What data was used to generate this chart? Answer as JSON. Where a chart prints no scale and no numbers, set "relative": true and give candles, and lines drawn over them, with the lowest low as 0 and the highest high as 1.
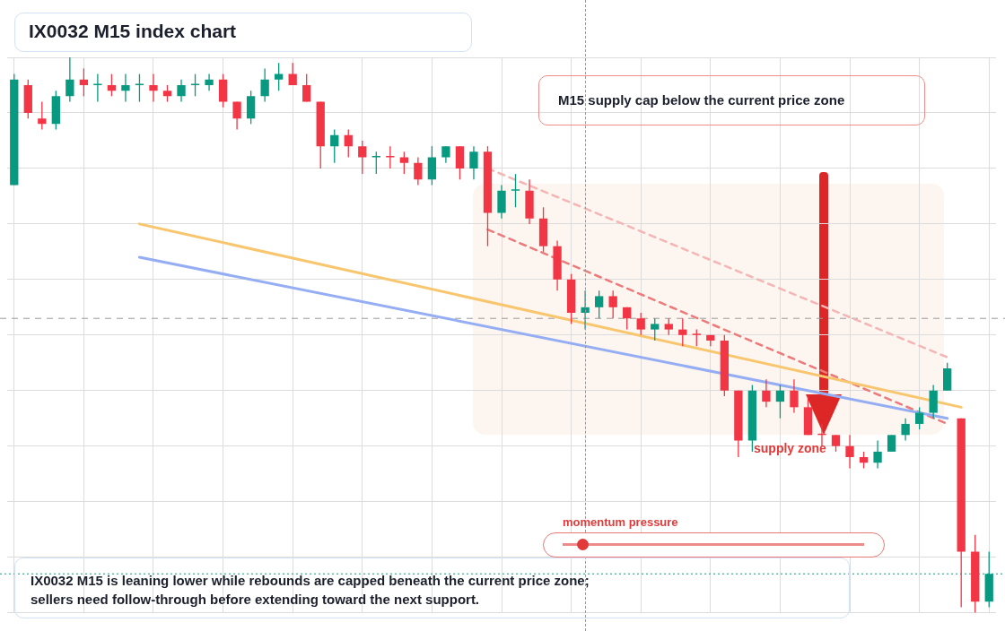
{
  "chart_data": {
    "type": "candlestick",
    "title": "IX0032 M15 index chart",
    "relative": true,
    "grid": true,
    "legend": false,
    "categories": [
      null,
      null,
      null,
      null,
      null,
      null,
      null,
      null,
      null,
      null,
      null,
      null,
      null,
      null,
      null,
      null,
      null,
      null,
      null,
      null,
      null,
      null,
      null,
      null,
      null,
      null,
      null,
      null,
      null,
      null,
      null,
      null,
      null,
      null,
      null,
      null,
      null,
      null,
      null,
      null,
      null,
      null,
      null,
      null,
      null,
      null,
      null,
      null,
      null,
      null,
      null,
      null,
      null,
      null,
      null,
      null,
      null,
      null,
      null,
      null,
      null,
      null,
      null,
      null,
      null,
      null,
      null,
      null,
      null,
      null,
      null
    ],
    "ohlc": [
      [
        0.77,
        0.97,
        0.77,
        0.96
      ],
      [
        0.95,
        0.96,
        0.89,
        0.9
      ],
      [
        0.89,
        0.92,
        0.87,
        0.88
      ],
      [
        0.88,
        0.94,
        0.87,
        0.93
      ],
      [
        0.93,
        1.0,
        0.92,
        0.96
      ],
      [
        0.96,
        0.98,
        0.93,
        0.95
      ],
      [
        0.95,
        0.97,
        0.92,
        0.95
      ],
      [
        0.95,
        0.97,
        0.93,
        0.94
      ],
      [
        0.94,
        0.97,
        0.92,
        0.95
      ],
      [
        0.95,
        0.97,
        0.92,
        0.95
      ],
      [
        0.95,
        0.97,
        0.92,
        0.94
      ],
      [
        0.94,
        0.95,
        0.92,
        0.93
      ],
      [
        0.93,
        0.96,
        0.92,
        0.95
      ],
      [
        0.95,
        0.97,
        0.93,
        0.95
      ],
      [
        0.95,
        0.97,
        0.94,
        0.96
      ],
      [
        0.96,
        0.97,
        0.91,
        0.92
      ],
      [
        0.92,
        0.92,
        0.87,
        0.89
      ],
      [
        0.89,
        0.94,
        0.88,
        0.93
      ],
      [
        0.93,
        0.98,
        0.92,
        0.96
      ],
      [
        0.96,
        0.99,
        0.94,
        0.97
      ],
      [
        0.97,
        0.99,
        0.95,
        0.95
      ],
      [
        0.95,
        0.97,
        0.92,
        0.92
      ],
      [
        0.92,
        0.92,
        0.8,
        0.84
      ],
      [
        0.84,
        0.87,
        0.81,
        0.86
      ],
      [
        0.86,
        0.87,
        0.82,
        0.84
      ],
      [
        0.84,
        0.85,
        0.79,
        0.82
      ],
      [
        0.82,
        0.83,
        0.79,
        0.82
      ],
      [
        0.82,
        0.84,
        0.8,
        0.82
      ],
      [
        0.82,
        0.83,
        0.79,
        0.81
      ],
      [
        0.81,
        0.82,
        0.77,
        0.78
      ],
      [
        0.78,
        0.84,
        0.77,
        0.82
      ],
      [
        0.82,
        0.84,
        0.81,
        0.84
      ],
      [
        0.84,
        0.84,
        0.78,
        0.8
      ],
      [
        0.8,
        0.84,
        0.78,
        0.83
      ],
      [
        0.83,
        0.84,
        0.66,
        0.72
      ],
      [
        0.72,
        0.77,
        0.71,
        0.76
      ],
      [
        0.76,
        0.79,
        0.73,
        0.76
      ],
      [
        0.76,
        0.78,
        0.7,
        0.71
      ],
      [
        0.71,
        0.73,
        0.65,
        0.66
      ],
      [
        0.66,
        0.67,
        0.58,
        0.6
      ],
      [
        0.6,
        0.61,
        0.52,
        0.54
      ],
      [
        0.54,
        0.58,
        0.51,
        0.55
      ],
      [
        0.55,
        0.58,
        0.53,
        0.57
      ],
      [
        0.57,
        0.58,
        0.53,
        0.55
      ],
      [
        0.55,
        0.55,
        0.51,
        0.53
      ],
      [
        0.53,
        0.54,
        0.5,
        0.51
      ],
      [
        0.51,
        0.53,
        0.49,
        0.52
      ],
      [
        0.52,
        0.53,
        0.5,
        0.51
      ],
      [
        0.51,
        0.53,
        0.48,
        0.5
      ],
      [
        0.5,
        0.51,
        0.48,
        0.5
      ],
      [
        0.5,
        0.5,
        0.48,
        0.49
      ],
      [
        0.49,
        0.5,
        0.39,
        0.4
      ],
      [
        0.4,
        0.4,
        0.28,
        0.31
      ],
      [
        0.31,
        0.41,
        0.29,
        0.4
      ],
      [
        0.4,
        0.42,
        0.37,
        0.38
      ],
      [
        0.38,
        0.41,
        0.35,
        0.4
      ],
      [
        0.4,
        0.42,
        0.36,
        0.37
      ],
      [
        0.37,
        0.39,
        0.32,
        0.32
      ],
      [
        0.32,
        0.34,
        0.3,
        0.32
      ],
      [
        0.32,
        0.32,
        0.29,
        0.3
      ],
      [
        0.3,
        0.32,
        0.26,
        0.28
      ],
      [
        0.28,
        0.29,
        0.26,
        0.27
      ],
      [
        0.27,
        0.31,
        0.26,
        0.29
      ],
      [
        0.29,
        0.32,
        0.29,
        0.32
      ],
      [
        0.32,
        0.35,
        0.31,
        0.34
      ],
      [
        0.34,
        0.37,
        0.33,
        0.36
      ],
      [
        0.36,
        0.41,
        0.35,
        0.4
      ],
      [
        0.4,
        0.45,
        0.4,
        0.44
      ],
      [
        0.35,
        0.35,
        0.01,
        0.11
      ],
      [
        0.11,
        0.14,
        0.0,
        0.02
      ],
      [
        0.02,
        0.11,
        0.01,
        0.07
      ]
    ],
    "colors": [
      "#089981",
      "#f23645",
      "#f23645",
      "#089981",
      "#089981",
      "#f23645",
      "#089981",
      "#f23645",
      "#089981",
      "#089981",
      "#f23645",
      "#f23645",
      "#089981",
      "#089981",
      "#089981",
      "#f23645",
      "#f23645",
      "#089981",
      "#089981",
      "#089981",
      "#f23645",
      "#f23645",
      "#f23645",
      "#089981",
      "#f23645",
      "#f23645",
      "#089981",
      "#f23645",
      "#f23645",
      "#f23645",
      "#089981",
      "#089981",
      "#f23645",
      "#089981",
      "#f23645",
      "#089981",
      "#089981",
      "#f23645",
      "#f23645",
      "#f23645",
      "#f23645",
      "#089981",
      "#089981",
      "#f23645",
      "#f23645",
      "#f23645",
      "#089981",
      "#f23645",
      "#f23645",
      "#f23645",
      "#f23645",
      "#f23645",
      "#f23645",
      "#089981",
      "#f23645",
      "#089981",
      "#f23645",
      "#f23645",
      "#f23645",
      "#f23645",
      "#f23645",
      "#f23645",
      "#089981",
      "#089981",
      "#089981",
      "#089981",
      "#089981",
      "#089981",
      "#f23645",
      "#f23645",
      "#089981"
    ],
    "series": [
      {
        "type": "line",
        "color": "#f8c66e",
        "line_style": "solid",
        "values": [
          null,
          null,
          null,
          null,
          null,
          null,
          null,
          null,
          null,
          0.7,
          null,
          null,
          null,
          null,
          null,
          null,
          null,
          null,
          null,
          null,
          null,
          null,
          null,
          null,
          null,
          null,
          null,
          null,
          null,
          null,
          null,
          null,
          null,
          null,
          null,
          null,
          null,
          null,
          null,
          null,
          null,
          null,
          null,
          null,
          null,
          null,
          null,
          null,
          null,
          null,
          null,
          null,
          null,
          null,
          null,
          null,
          null,
          null,
          null,
          null,
          null,
          null,
          null,
          null,
          null,
          null,
          null,
          null,
          0.37,
          null,
          null
        ]
      },
      {
        "type": "line",
        "color": "#94adf3",
        "line_style": "solid",
        "values": [
          null,
          null,
          null,
          null,
          null,
          null,
          null,
          null,
          null,
          0.64,
          null,
          null,
          null,
          null,
          null,
          null,
          null,
          null,
          null,
          null,
          null,
          null,
          null,
          null,
          null,
          null,
          null,
          null,
          null,
          null,
          null,
          null,
          null,
          null,
          null,
          null,
          null,
          null,
          null,
          null,
          null,
          null,
          null,
          null,
          null,
          null,
          null,
          null,
          null,
          null,
          null,
          null,
          null,
          null,
          null,
          null,
          null,
          null,
          null,
          null,
          null,
          null,
          null,
          null,
          null,
          null,
          null,
          0.35,
          null,
          null,
          null
        ]
      },
      {
        "type": "line",
        "color": "#ec7a7a",
        "line_style": "dashed",
        "values": [
          null,
          null,
          null,
          null,
          null,
          null,
          null,
          null,
          null,
          null,
          null,
          null,
          null,
          null,
          null,
          null,
          null,
          null,
          null,
          null,
          null,
          null,
          null,
          null,
          null,
          null,
          null,
          null,
          null,
          null,
          null,
          null,
          null,
          null,
          0.69,
          null,
          null,
          null,
          null,
          null,
          null,
          null,
          null,
          null,
          null,
          null,
          null,
          null,
          null,
          null,
          null,
          null,
          null,
          null,
          null,
          null,
          null,
          null,
          null,
          null,
          null,
          null,
          null,
          null,
          null,
          null,
          null,
          0.34,
          null,
          null,
          null
        ]
      },
      {
        "type": "line",
        "color": "#f5b5b5",
        "line_style": "dashed",
        "values": [
          null,
          null,
          null,
          null,
          null,
          null,
          null,
          null,
          null,
          null,
          null,
          null,
          null,
          null,
          null,
          null,
          null,
          null,
          null,
          null,
          null,
          null,
          null,
          null,
          null,
          null,
          null,
          null,
          null,
          null,
          null,
          null,
          null,
          null,
          0.8,
          null,
          null,
          null,
          null,
          null,
          null,
          null,
          null,
          null,
          null,
          null,
          null,
          null,
          null,
          null,
          null,
          null,
          null,
          null,
          null,
          null,
          null,
          null,
          null,
          null,
          null,
          null,
          null,
          null,
          null,
          null,
          null,
          0.46,
          null,
          null,
          null
        ]
      }
    ],
    "ref_lines": [
      {
        "axis": "y",
        "value": 0.53,
        "color": "#9a9a9a",
        "line_style": "dashed"
      },
      {
        "axis": "y",
        "value": 0.07,
        "color": "#089981",
        "line_style": "dotted"
      }
    ],
    "annotations": [
      "M15 supply cap below the current price zone",
      "supply zone",
      "momentum pressure",
      "IX0032 M15 is leaning lower while rebounds are capped beneath the current price zone; sellers need follow-through before extending toward the next support."
    ]
  }
}
